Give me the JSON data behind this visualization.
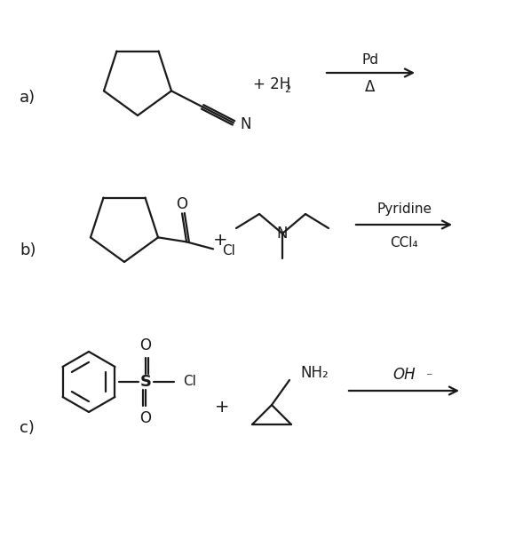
{
  "background_color": "#ffffff",
  "label_a": "a)",
  "label_b": "b)",
  "label_c": "c)",
  "line_color": "#1a1a1a",
  "text_color": "#1a1a1a",
  "reaction_a": {
    "reagent_above": "Pd",
    "reagent_below": "Δ",
    "plus_text": "+ 2H"
  },
  "reaction_b": {
    "reagent_above": "Pyridine",
    "reagent_below": "CCl₄",
    "plus_text": "+"
  },
  "reaction_c": {
    "reagent_above": "OH",
    "reagent_minus": "⁻",
    "plus_text": "+"
  }
}
